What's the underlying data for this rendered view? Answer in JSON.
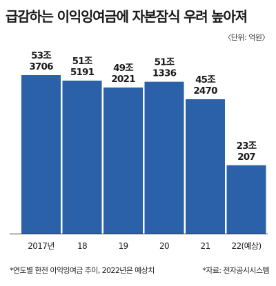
{
  "title": "급감하는 이익잉여금에 자본잠식 우려 높아져",
  "unit_note": "〈단위: 억원〉",
  "footnote": "*연도별 한전 이익잉여금 추이, 2022년은 예상치",
  "source": "*자료: 전자공시시스템",
  "colors": {
    "bar": "#2a61a8",
    "text": "#1a1a1a",
    "axis": "#333333"
  },
  "chart_data": {
    "type": "bar",
    "categories": [
      "2017년",
      "18",
      "19",
      "20",
      "21",
      "22(예상)"
    ],
    "values": [
      533706,
      515191,
      492021,
      511336,
      452470,
      230207
    ],
    "value_labels": [
      [
        "53조",
        "3706"
      ],
      [
        "51조",
        "5191"
      ],
      [
        "49조",
        "2021"
      ],
      [
        "51조",
        "1336"
      ],
      [
        "45조",
        "2470"
      ],
      [
        "23조",
        "207"
      ]
    ],
    "ylim": [
      0,
      620000
    ]
  }
}
